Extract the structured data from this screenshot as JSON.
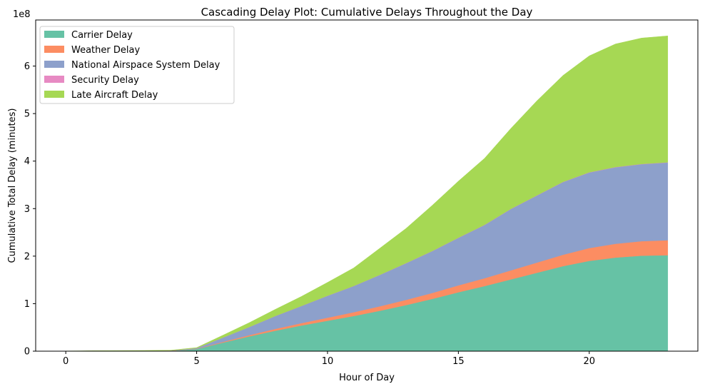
{
  "chart_data": {
    "type": "area",
    "stacked": true,
    "title": "Cascading Delay Plot: Cumulative Delays Throughout the Day",
    "xlabel": "Hour of Day",
    "ylabel": "Cumulative Total Delay (minutes)",
    "y_offset_label": "1e8",
    "xlim": [
      -1.15,
      24.15
    ],
    "ylim": [
      0,
      697000000
    ],
    "x_ticks": [
      0,
      5,
      10,
      15,
      20
    ],
    "x_tick_labels": [
      "0",
      "5",
      "10",
      "15",
      "20"
    ],
    "y_ticks": [
      0,
      100000000,
      200000000,
      300000000,
      400000000,
      500000000,
      600000000
    ],
    "y_tick_labels": [
      "0",
      "1",
      "2",
      "3",
      "4",
      "5",
      "6"
    ],
    "legend_position": "upper-left",
    "grid": false,
    "x": [
      0,
      1,
      2,
      3,
      4,
      5,
      6,
      7,
      8,
      9,
      10,
      11,
      12,
      13,
      14,
      15,
      16,
      17,
      18,
      19,
      20,
      21,
      22,
      23
    ],
    "series": [
      {
        "name": "Carrier Delay",
        "color": "#66c2a5",
        "values": [
          100000,
          300000,
          400000,
          500000,
          800000,
          4500000,
          18000000,
          31000000,
          43000000,
          54000000,
          64000000,
          74000000,
          85000000,
          97000000,
          110000000,
          124000000,
          137000000,
          151000000,
          165000000,
          179000000,
          190000000,
          197000000,
          201000000,
          202000000
        ]
      },
      {
        "name": "Weather Delay",
        "color": "#fc8d62",
        "values": [
          0,
          0,
          0,
          0,
          100000,
          500000,
          1500000,
          2600000,
          3800000,
          5000000,
          6500000,
          8000000,
          9500000,
          11000000,
          12500000,
          14500000,
          16500000,
          19000000,
          21500000,
          24000000,
          27000000,
          29000000,
          30500000,
          31500000
        ]
      },
      {
        "name": "National Airspace System Delay",
        "color": "#8da0cb",
        "values": [
          100000,
          200000,
          300000,
          400000,
          500000,
          1500000,
          9000000,
          17000000,
          27000000,
          36000000,
          46000000,
          55000000,
          66000000,
          77000000,
          88000000,
          100000000,
          112000000,
          129000000,
          141000000,
          153000000,
          159000000,
          161000000,
          162000000,
          163500000
        ]
      },
      {
        "name": "Security Delay",
        "color": "#e78ac3",
        "values": [
          0,
          0,
          0,
          0,
          0,
          0,
          0,
          100000,
          100000,
          100000,
          200000,
          200000,
          200000,
          300000,
          300000,
          300000,
          400000,
          400000,
          400000,
          400000,
          500000,
          500000,
          500000,
          500000
        ]
      },
      {
        "name": "Late Aircraft Delay",
        "color": "#a6d854",
        "values": [
          200000,
          400000,
          500000,
          600000,
          600000,
          1000000,
          5000000,
          9000000,
          14000000,
          20000000,
          28000000,
          38000000,
          56000000,
          73000000,
          96000000,
          119000000,
          140000000,
          169000000,
          199000000,
          224000000,
          245000000,
          259000000,
          265000000,
          266000000
        ]
      }
    ]
  }
}
